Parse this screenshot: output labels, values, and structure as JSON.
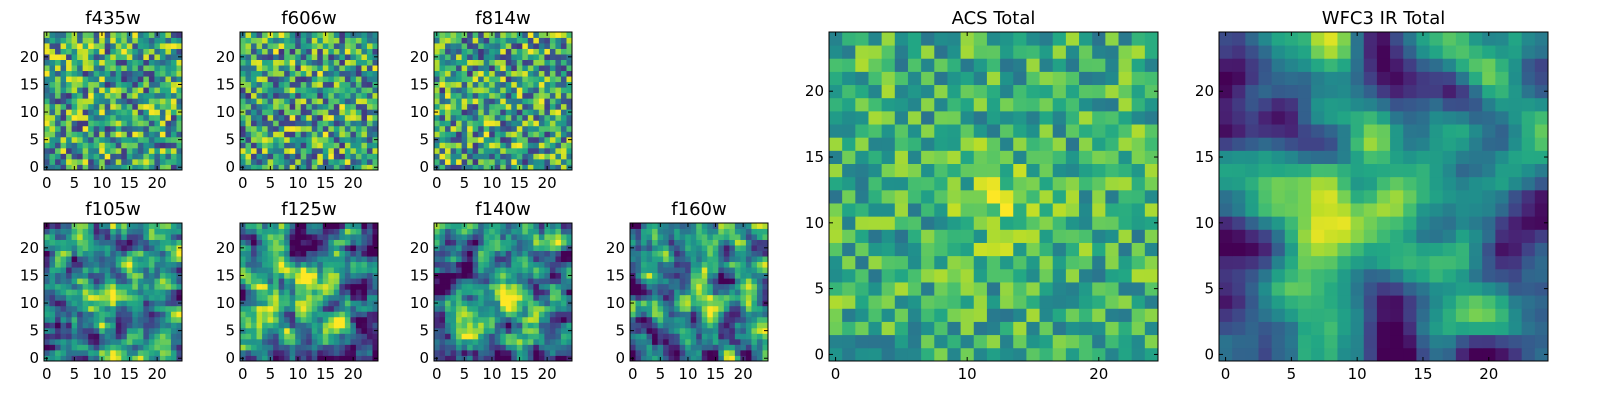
{
  "chart_data": [
    {
      "type": "heatmap",
      "title": "f435w",
      "grid": false,
      "size": [
        25,
        25
      ],
      "xlim": [
        0,
        24
      ],
      "ylim": [
        0,
        24
      ],
      "xticks": [
        0,
        5,
        10,
        15,
        20
      ],
      "yticks": [
        0,
        5,
        10,
        15,
        20
      ],
      "colormap": "viridis",
      "pattern": "noise",
      "seed": 11
    },
    {
      "type": "heatmap",
      "title": "f606w",
      "grid": false,
      "size": [
        25,
        25
      ],
      "xlim": [
        0,
        24
      ],
      "ylim": [
        0,
        24
      ],
      "xticks": [
        0,
        5,
        10,
        15,
        20
      ],
      "yticks": [
        0,
        5,
        10,
        15,
        20
      ],
      "colormap": "viridis",
      "pattern": "noise",
      "seed": 23
    },
    {
      "type": "heatmap",
      "title": "f814w",
      "grid": false,
      "size": [
        25,
        25
      ],
      "xlim": [
        0,
        24
      ],
      "ylim": [
        0,
        24
      ],
      "xticks": [
        0,
        5,
        10,
        15,
        20
      ],
      "yticks": [
        0,
        5,
        10,
        15,
        20
      ],
      "colormap": "viridis",
      "pattern": "noise",
      "seed": 37
    },
    {
      "type": "heatmap",
      "title": "f105w",
      "grid": false,
      "size": [
        25,
        25
      ],
      "xlim": [
        0,
        24
      ],
      "ylim": [
        0,
        24
      ],
      "xticks": [
        0,
        5,
        10,
        15,
        20
      ],
      "yticks": [
        0,
        5,
        10,
        15,
        20
      ],
      "colormap": "viridis",
      "pattern": "blob",
      "seed": 41
    },
    {
      "type": "heatmap",
      "title": "f125w",
      "grid": false,
      "size": [
        25,
        25
      ],
      "xlim": [
        0,
        24
      ],
      "ylim": [
        0,
        24
      ],
      "xticks": [
        0,
        5,
        10,
        15,
        20
      ],
      "yticks": [
        0,
        5,
        10,
        15,
        20
      ],
      "colormap": "viridis",
      "pattern": "blob",
      "seed": 53
    },
    {
      "type": "heatmap",
      "title": "f140w",
      "grid": false,
      "size": [
        25,
        25
      ],
      "xlim": [
        0,
        24
      ],
      "ylim": [
        0,
        24
      ],
      "xticks": [
        0,
        5,
        10,
        15,
        20
      ],
      "yticks": [
        0,
        5,
        10,
        15,
        20
      ],
      "colormap": "viridis",
      "pattern": "blob",
      "seed": 67
    },
    {
      "type": "heatmap",
      "title": "f160w",
      "grid": false,
      "size": [
        25,
        25
      ],
      "xlim": [
        0,
        24
      ],
      "ylim": [
        0,
        24
      ],
      "xticks": [
        0,
        5,
        10,
        15,
        20
      ],
      "yticks": [
        0,
        5,
        10,
        15,
        20
      ],
      "colormap": "viridis",
      "pattern": "blob",
      "seed": 79
    },
    {
      "type": "heatmap",
      "title": "ACS Total",
      "grid": false,
      "size": [
        25,
        25
      ],
      "xlim": [
        0,
        24
      ],
      "ylim": [
        0,
        24
      ],
      "xticks": [
        0,
        10,
        20
      ],
      "yticks": [
        0,
        5,
        10,
        15,
        20
      ],
      "colormap": "viridis",
      "pattern": "noise-bright",
      "seed": 97
    },
    {
      "type": "heatmap",
      "title": "WFC3 IR Total",
      "grid": false,
      "size": [
        25,
        25
      ],
      "xlim": [
        0,
        24
      ],
      "ylim": [
        0,
        24
      ],
      "xticks": [
        0,
        5,
        10,
        15,
        20
      ],
      "yticks": [
        0,
        5,
        10,
        15,
        20
      ],
      "colormap": "viridis",
      "pattern": "smooth-blob",
      "seed": 101
    }
  ]
}
